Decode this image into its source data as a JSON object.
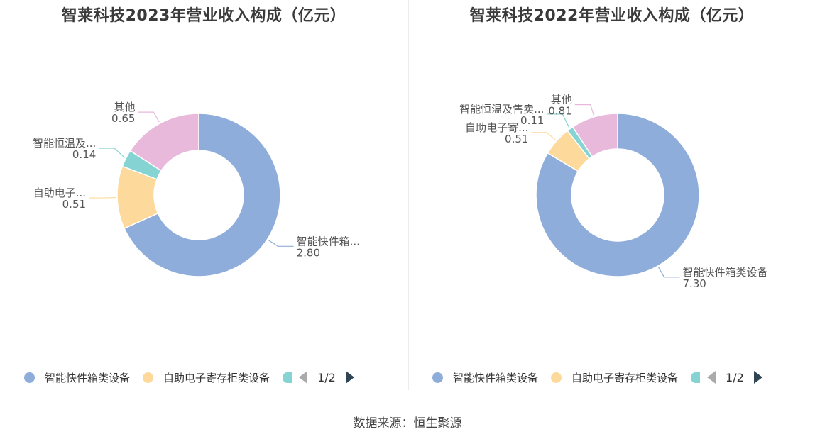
{
  "chart_data": [
    {
      "type": "pie",
      "title": "智莱科技2023年营业收入构成（亿元）",
      "slices": [
        {
          "name": "智能快件箱类设备",
          "label": "智能快件箱...",
          "value": 2.8,
          "display": "2.80",
          "color": "#8eaddb"
        },
        {
          "name": "自助电子寄存柜类设备",
          "label": "自助电子...",
          "value": 0.51,
          "display": "0.51",
          "color": "#fdd99b"
        },
        {
          "name": "智能恒温及售卖设备",
          "label": "智能恒温及...",
          "value": 0.14,
          "display": "0.14",
          "color": "#85d3d3"
        },
        {
          "name": "其他",
          "label": "其他",
          "value": 0.65,
          "display": "0.65",
          "color": "#e9b9dc"
        }
      ],
      "legend": {
        "items": [
          {
            "label": "智能快件箱类设备",
            "color": "#8eaddb"
          },
          {
            "label": "自助电子寄存柜类设备",
            "color": "#fdd99b"
          }
        ],
        "partial_color": "#85d3d3",
        "page": "1/2",
        "placement": "bottom"
      }
    },
    {
      "type": "pie",
      "title": "智莱科技2022年营业收入构成（亿元）",
      "slices": [
        {
          "name": "智能快件箱类设备",
          "label": "智能快件箱类设备",
          "value": 7.3,
          "display": "7.30",
          "color": "#8eaddb"
        },
        {
          "name": "自助电子寄存柜类设备",
          "label": "自助电子寄...",
          "value": 0.51,
          "display": "0.51",
          "color": "#fdd99b"
        },
        {
          "name": "智能恒温及售卖设备",
          "label": "智能恒温及售卖...",
          "value": 0.11,
          "display": "0.11",
          "color": "#85d3d3"
        },
        {
          "name": "其他",
          "label": "其他",
          "value": 0.81,
          "display": "0.81",
          "color": "#e9b9dc"
        }
      ],
      "legend": {
        "items": [
          {
            "label": "智能快件箱类设备",
            "color": "#8eaddb"
          },
          {
            "label": "自助电子寄存柜类设备",
            "color": "#fdd99b"
          }
        ],
        "partial_color": "#85d3d3",
        "page": "1/2",
        "placement": "bottom"
      }
    }
  ],
  "source": "数据来源：恒生聚源"
}
